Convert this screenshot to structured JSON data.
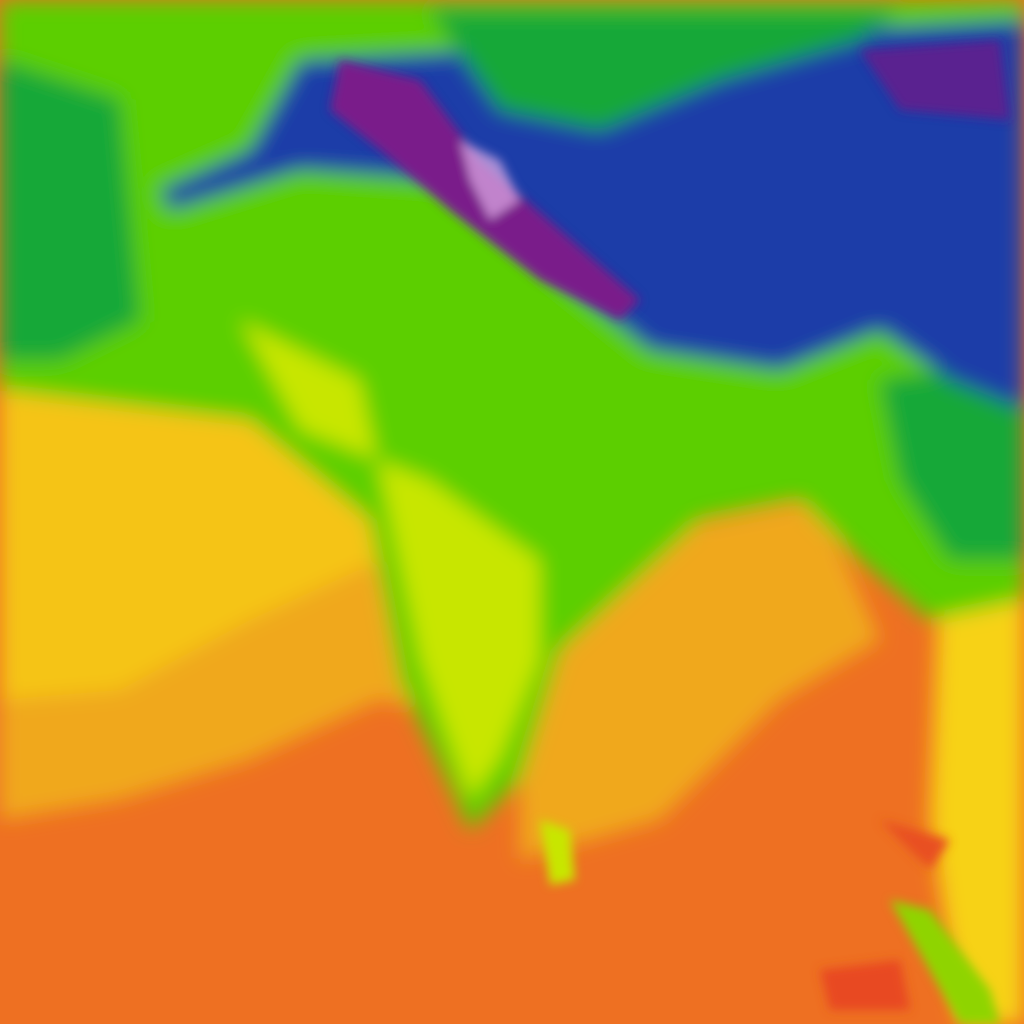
{
  "map": {
    "colors": {
      "warmest": "#ee6a20",
      "warm": "#f0a81e",
      "mild": "#f7d214",
      "lime": "#c8e600",
      "green": "#5ccf00",
      "dark_green": "#14a838",
      "cyan_blue": "#0a8ad8",
      "blue": "#1e3ca8",
      "indigo": "#3a2a9a",
      "purple": "#7a1a8a",
      "cold_peak": "#e0b0e8"
    }
  }
}
